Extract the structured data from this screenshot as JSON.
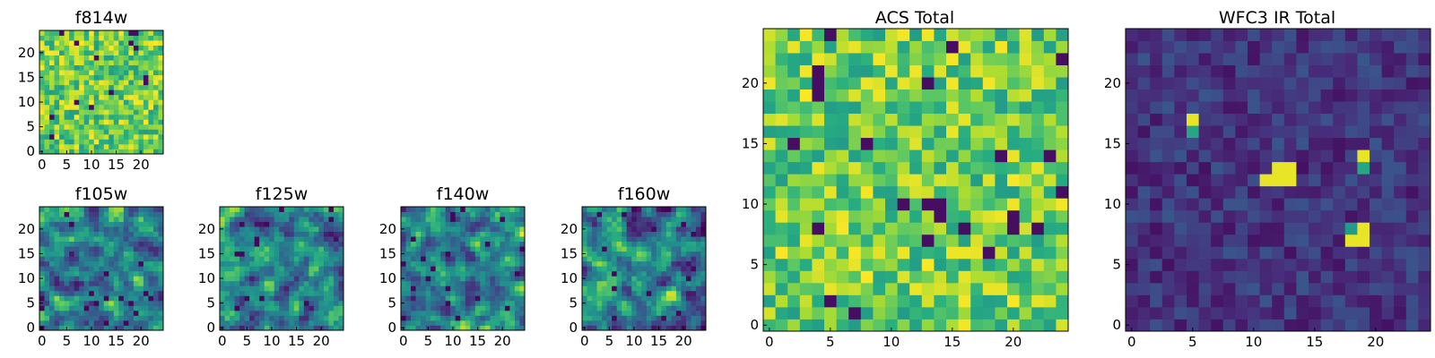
{
  "figure": {
    "panels": [
      {
        "id": "f814w",
        "title": "f814w",
        "seed": 11,
        "style": "acs",
        "xticks": [
          "0",
          "5",
          "10",
          "15",
          "20"
        ],
        "yticks": [
          "0",
          "5",
          "10",
          "15",
          "20"
        ]
      },
      {
        "id": "f105w",
        "title": "f105w",
        "seed": 23,
        "style": "smooth",
        "xticks": [
          "0",
          "5",
          "10",
          "15",
          "20"
        ],
        "yticks": [
          "0",
          "5",
          "10",
          "15",
          "20"
        ]
      },
      {
        "id": "f125w",
        "title": "f125w",
        "seed": 37,
        "style": "smooth",
        "xticks": [
          "0",
          "5",
          "10",
          "15",
          "20"
        ],
        "yticks": [
          "0",
          "5",
          "10",
          "15",
          "20"
        ]
      },
      {
        "id": "f140w",
        "title": "f140w",
        "seed": 41,
        "style": "smooth",
        "xticks": [
          "0",
          "5",
          "10",
          "15",
          "20"
        ],
        "yticks": [
          "0",
          "5",
          "10",
          "15",
          "20"
        ]
      },
      {
        "id": "f160w",
        "title": "f160w",
        "seed": 53,
        "style": "smooth",
        "xticks": [
          "0",
          "5",
          "10",
          "15",
          "20"
        ],
        "yticks": [
          "0",
          "5",
          "10",
          "15",
          "20"
        ]
      },
      {
        "id": "acs-total",
        "title": "ACS Total",
        "seed": 67,
        "style": "acs",
        "xticks": [
          "0",
          "5",
          "10",
          "15",
          "20"
        ],
        "yticks": [
          "0",
          "5",
          "10",
          "15",
          "20"
        ]
      },
      {
        "id": "wfc3-total",
        "title": "WFC3 IR Total",
        "seed": 79,
        "style": "ir",
        "xticks": [
          "0",
          "5",
          "10",
          "15",
          "20"
        ],
        "yticks": [
          "0",
          "5",
          "10",
          "15",
          "20"
        ]
      }
    ]
  },
  "chart_data": {
    "type": "heatmap",
    "grid_size": [
      25,
      25
    ],
    "colormap": "viridis",
    "xlim": [
      0,
      25
    ],
    "ylim": [
      0,
      25
    ],
    "origin": "lower",
    "panels": [
      "f814w",
      "f105w",
      "f125w",
      "f140w",
      "f160w",
      "ACS Total",
      "WFC3 IR Total"
    ],
    "wfc3_ir_total_bright_pixels": [
      {
        "x": 5,
        "y": 17
      },
      {
        "x": 12,
        "y": 12
      },
      {
        "x": 13,
        "y": 12
      },
      {
        "x": 12,
        "y": 13
      },
      {
        "x": 13,
        "y": 13
      },
      {
        "x": 11,
        "y": 12
      },
      {
        "x": 19,
        "y": 14
      },
      {
        "x": 19,
        "y": 8
      },
      {
        "x": 19,
        "y": 7
      },
      {
        "x": 18,
        "y": 7
      }
    ]
  }
}
